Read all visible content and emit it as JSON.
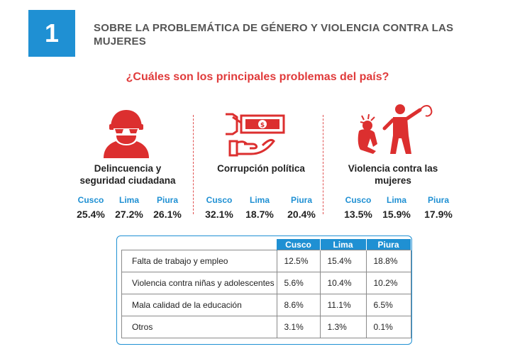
{
  "header": {
    "number": "1",
    "title": "SOBRE LA PROBLEMÁTICA DE GÉNERO Y VIOLENCIA CONTRA LAS MUJERES"
  },
  "question": "¿Cuáles son los principales problemas del país?",
  "colors": {
    "accent_blue": "#1f90d3",
    "accent_red": "#e03b3b",
    "icon_red": "#dc2f2f"
  },
  "categories": [
    {
      "icon": "thief-icon",
      "label": "Delincuencia y seguridad ciudadana",
      "stats": [
        {
          "city": "Cusco",
          "value": "25.4%"
        },
        {
          "city": "Lima",
          "value": "27.2%"
        },
        {
          "city": "Piura",
          "value": "26.1%"
        }
      ]
    },
    {
      "icon": "bribery-money-hand-icon",
      "label": "Corrupción política",
      "stats": [
        {
          "city": "Cusco",
          "value": "32.1%"
        },
        {
          "city": "Lima",
          "value": "18.7%"
        },
        {
          "city": "Piura",
          "value": "20.4%"
        }
      ]
    },
    {
      "icon": "violence-whip-icon",
      "label": "Violencia contra las mujeres",
      "stats": [
        {
          "city": "Cusco",
          "value": "13.5%"
        },
        {
          "city": "Lima",
          "value": "15.9%"
        },
        {
          "city": "Piura",
          "value": "17.9%"
        }
      ]
    }
  ],
  "table": {
    "columns": [
      "Cusco",
      "Lima",
      "Piura"
    ],
    "rows": [
      {
        "label": "Falta de trabajo y empleo",
        "values": [
          "12.5%",
          "15.4%",
          "18.8%"
        ]
      },
      {
        "label": "Violencia contra niñas y adolescentes",
        "values": [
          "5.6%",
          "10.4%",
          "10.2%"
        ]
      },
      {
        "label": "Mala calidad de la educación",
        "values": [
          "8.6%",
          "11.1%",
          "6.5%"
        ]
      },
      {
        "label": "Otros",
        "values": [
          "3.1%",
          "1.3%",
          "0.1%"
        ]
      }
    ]
  }
}
